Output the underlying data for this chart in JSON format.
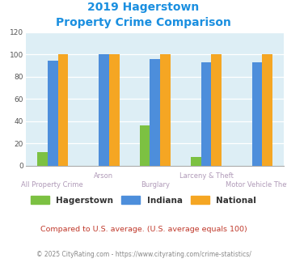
{
  "title_line1": "2019 Hagerstown",
  "title_line2": "Property Crime Comparison",
  "categories": [
    "All Property Crime",
    "Arson",
    "Burglary",
    "Larceny & Theft",
    "Motor Vehicle Theft"
  ],
  "category_labels_line1": [
    "",
    "Arson",
    "",
    "Larceny & Theft",
    ""
  ],
  "category_labels_line2": [
    "All Property Crime",
    "",
    "Burglary",
    "",
    "Motor Vehicle Theft"
  ],
  "hagerstown": [
    12,
    0,
    36,
    8,
    0
  ],
  "indiana": [
    94,
    100,
    96,
    93,
    93
  ],
  "national": [
    100,
    100,
    100,
    100,
    100
  ],
  "color_hagerstown": "#7cc142",
  "color_indiana": "#4d8edb",
  "color_national": "#f5a623",
  "ylim": [
    0,
    120
  ],
  "yticks": [
    0,
    20,
    40,
    60,
    80,
    100,
    120
  ],
  "title_color": "#1a8fe0",
  "xlabel_color_top": "#b09ab8",
  "xlabel_color_bottom": "#b09ab8",
  "legend_label_color": "#333333",
  "background_color": "#ddeef5",
  "grid_color": "#ffffff",
  "footnote1": "Compared to U.S. average. (U.S. average equals 100)",
  "footnote2": "© 2025 CityRating.com - https://www.cityrating.com/crime-statistics/",
  "footnote1_color": "#c0392b",
  "footnote2_color": "#888888"
}
